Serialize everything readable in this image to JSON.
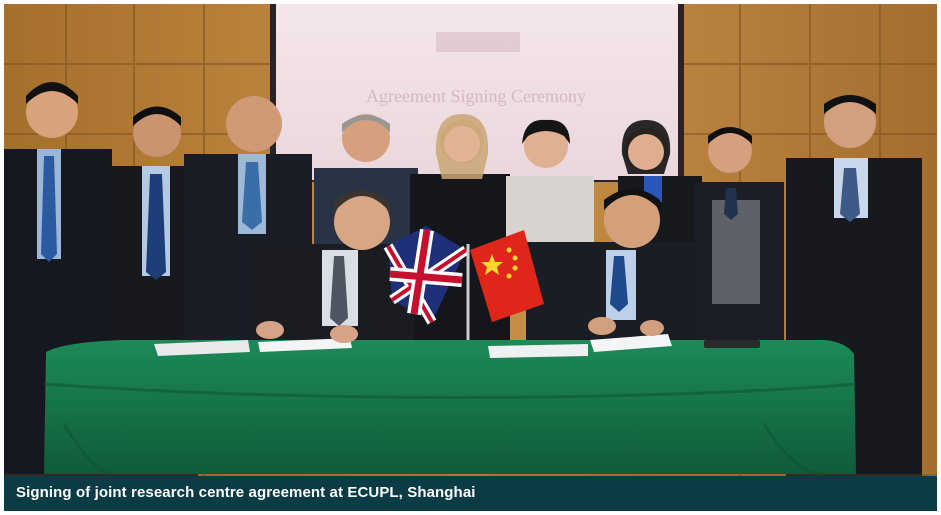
{
  "photo": {
    "caption": "Signing of joint research centre agreement at ECUPL, Shanghai",
    "screen_heading": "Agreement Signing Ceremony",
    "flags": [
      "united-kingdom-flag",
      "china-flag"
    ],
    "colors": {
      "caption_bar": "#0b3b45",
      "caption_text": "#ffffff",
      "tablecloth": "#177a4c",
      "wall": "#c38c3f",
      "screen": "#f1e4e6"
    }
  }
}
